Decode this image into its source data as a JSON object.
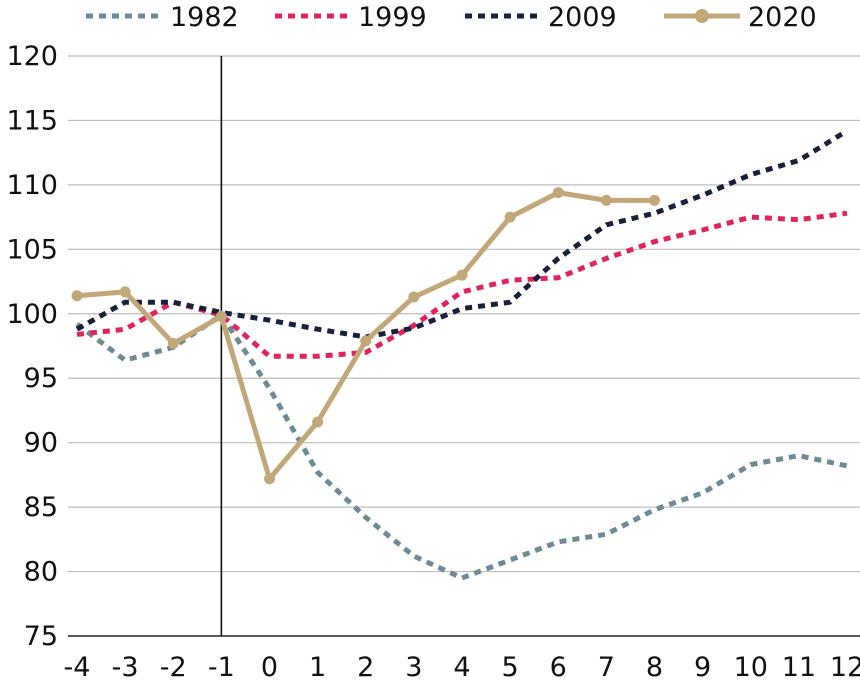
{
  "chart_data": {
    "type": "line",
    "title": "",
    "xlabel": "",
    "ylabel": "",
    "x": [
      -4,
      -3,
      -2,
      -1,
      0,
      1,
      2,
      3,
      4,
      5,
      6,
      7,
      8,
      9,
      10,
      11,
      12
    ],
    "xlim": [
      -4,
      12
    ],
    "ylim": [
      75,
      120
    ],
    "yticks": [
      75,
      80,
      85,
      90,
      95,
      100,
      105,
      110,
      115,
      120
    ],
    "xtick_labels": [
      "-4",
      "-3",
      "-2",
      "-1",
      "0",
      "1",
      "2",
      "3",
      "4",
      "5",
      "6",
      "7",
      "8",
      "9",
      "10",
      "11",
      "12"
    ],
    "ytick_labels": [
      "75",
      "80",
      "85",
      "90",
      "95",
      "100",
      "105",
      "110",
      "115",
      "120"
    ],
    "grid": "horizontal",
    "reference_line_x": -1,
    "legend": {
      "placement": "top"
    },
    "series": [
      {
        "name": "1982",
        "color": "#6e8a94",
        "style": "dotted",
        "x": [
          -4,
          -3,
          -2,
          -1,
          0,
          1,
          2,
          3,
          4,
          5,
          6,
          7,
          8,
          9,
          10,
          11,
          12
        ],
        "values": [
          99.2,
          96.4,
          97.4,
          99.9,
          94.2,
          87.7,
          84.2,
          81.2,
          79.5,
          80.9,
          82.3,
          82.9,
          84.8,
          86.1,
          88.3,
          89.0,
          88.2
        ]
      },
      {
        "name": "1999",
        "color": "#e0245e",
        "style": "dotted",
        "x": [
          -4,
          -3,
          -2,
          -1,
          0,
          1,
          2,
          3,
          4,
          5,
          6,
          7,
          8,
          9,
          10,
          11,
          12
        ],
        "values": [
          98.4,
          98.8,
          100.9,
          99.9,
          96.7,
          96.7,
          97.0,
          99.1,
          101.7,
          102.6,
          102.8,
          104.3,
          105.6,
          106.5,
          107.5,
          107.3,
          107.8
        ]
      },
      {
        "name": "2009",
        "color": "#1a1f3a",
        "style": "dotted",
        "x": [
          -4,
          -3,
          -2,
          -1,
          0,
          1,
          2,
          3,
          4,
          5,
          6,
          7,
          8,
          9,
          10,
          11,
          12
        ],
        "values": [
          98.8,
          100.9,
          100.9,
          100.1,
          99.5,
          98.8,
          98.2,
          98.9,
          100.4,
          100.9,
          104.3,
          106.9,
          107.8,
          109.2,
          110.8,
          111.9,
          114.2
        ]
      },
      {
        "name": "2020",
        "color": "#c2a878",
        "style": "solid-markers",
        "x": [
          -4,
          -3,
          -2,
          -1,
          0,
          1,
          2,
          3,
          4,
          5,
          6,
          7,
          8
        ],
        "values": [
          101.4,
          101.7,
          97.7,
          99.8,
          87.2,
          91.6,
          97.9,
          101.3,
          103.0,
          107.5,
          109.4,
          108.8,
          108.8
        ]
      }
    ]
  }
}
